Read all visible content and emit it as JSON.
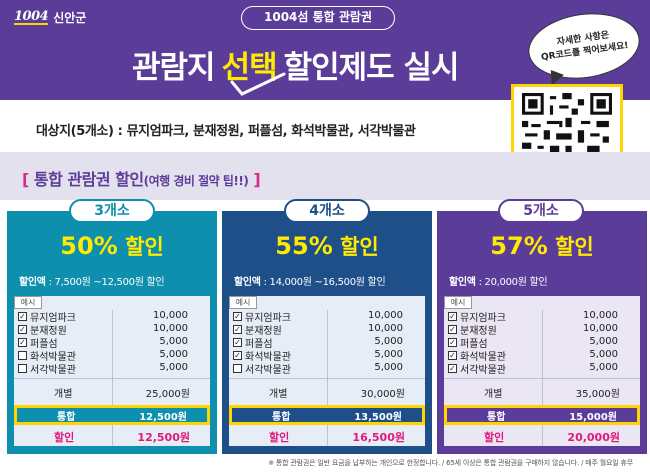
{
  "header": {
    "logo_mark": "1004",
    "logo_text": "신안군",
    "pass_title": "1004섬 통합 관람권",
    "headline_part1": "관람지",
    "headline_highlight": "선택",
    "headline_part2": "할인제도 실시",
    "speech_line1": "자세한 사항은",
    "speech_line2": "QR코드를 찍어보세요!"
  },
  "targets": {
    "text": "대상지(5개소) : 뮤지엄파크, 분재정원, 퍼플섬, 화석박물관, 서각박물관"
  },
  "band": {
    "bracket_open": "[",
    "title": "통합 관람권 할인",
    "subtitle": "(여행 경비 절약 팁!!)",
    "bracket_close": "]"
  },
  "colors": {
    "header_purple": "#5b3d99",
    "tier1_teal": "#0d8fad",
    "tier2_navy": "#1e4f88",
    "tier3_purple": "#5b3d99",
    "highlight_yellow": "#ffea00",
    "discount_pink": "#e0197d"
  },
  "tiers": [
    {
      "tab": "3개소",
      "discount_pct": "50%",
      "discount_word": "할인",
      "range_label": "할인액",
      "range_value": " : 7,500원 ~12,500원 할인",
      "example_label": "예시",
      "items": [
        {
          "name": "뮤지엄파크",
          "checked": true,
          "price": "10,000"
        },
        {
          "name": "분재정원",
          "checked": true,
          "price": "10,000"
        },
        {
          "name": "퍼플섬",
          "checked": true,
          "price": "5,000"
        },
        {
          "name": "화석박물관",
          "checked": false,
          "price": "5,000"
        },
        {
          "name": "서각박물관",
          "checked": false,
          "price": "5,000"
        }
      ],
      "individual_label": "개별",
      "individual_value": "25,000원",
      "total_label": "통합",
      "total_value": "12,500원",
      "discount_label": "할인",
      "discount_value": "12,500원"
    },
    {
      "tab": "4개소",
      "discount_pct": "55%",
      "discount_word": "할인",
      "range_label": "할인액",
      "range_value": " : 14,000원 ~16,500원 할인",
      "example_label": "예시",
      "items": [
        {
          "name": "뮤지엄파크",
          "checked": true,
          "price": "10,000"
        },
        {
          "name": "분재정원",
          "checked": true,
          "price": "10,000"
        },
        {
          "name": "퍼플섬",
          "checked": true,
          "price": "5,000"
        },
        {
          "name": "화석박물관",
          "checked": true,
          "price": "5,000"
        },
        {
          "name": "서각박물관",
          "checked": false,
          "price": "5,000"
        }
      ],
      "individual_label": "개별",
      "individual_value": "30,000원",
      "total_label": "통합",
      "total_value": "13,500원",
      "discount_label": "할인",
      "discount_value": "16,500원"
    },
    {
      "tab": "5개소",
      "discount_pct": "57%",
      "discount_word": "할인",
      "range_label": "할인액",
      "range_value": " : 20,000원 할인",
      "example_label": "예시",
      "items": [
        {
          "name": "뮤지엄파크",
          "checked": true,
          "price": "10,000"
        },
        {
          "name": "분재정원",
          "checked": true,
          "price": "10,000"
        },
        {
          "name": "퍼플섬",
          "checked": true,
          "price": "5,000"
        },
        {
          "name": "화석박물관",
          "checked": true,
          "price": "5,000"
        },
        {
          "name": "서각박물관",
          "checked": true,
          "price": "5,000"
        }
      ],
      "individual_label": "개별",
      "individual_value": "35,000원",
      "total_label": "통합",
      "total_value": "15,000원",
      "discount_label": "할인",
      "discount_value": "20,000원"
    }
  ],
  "footer": {
    "note": "※ 통합 관람권은 일반 요금을 납부하는 개인으로 한정합니다. / 65세 이상은 통합 관람권을 구매하지 않습니다. / 매주 월요일 휴무"
  }
}
